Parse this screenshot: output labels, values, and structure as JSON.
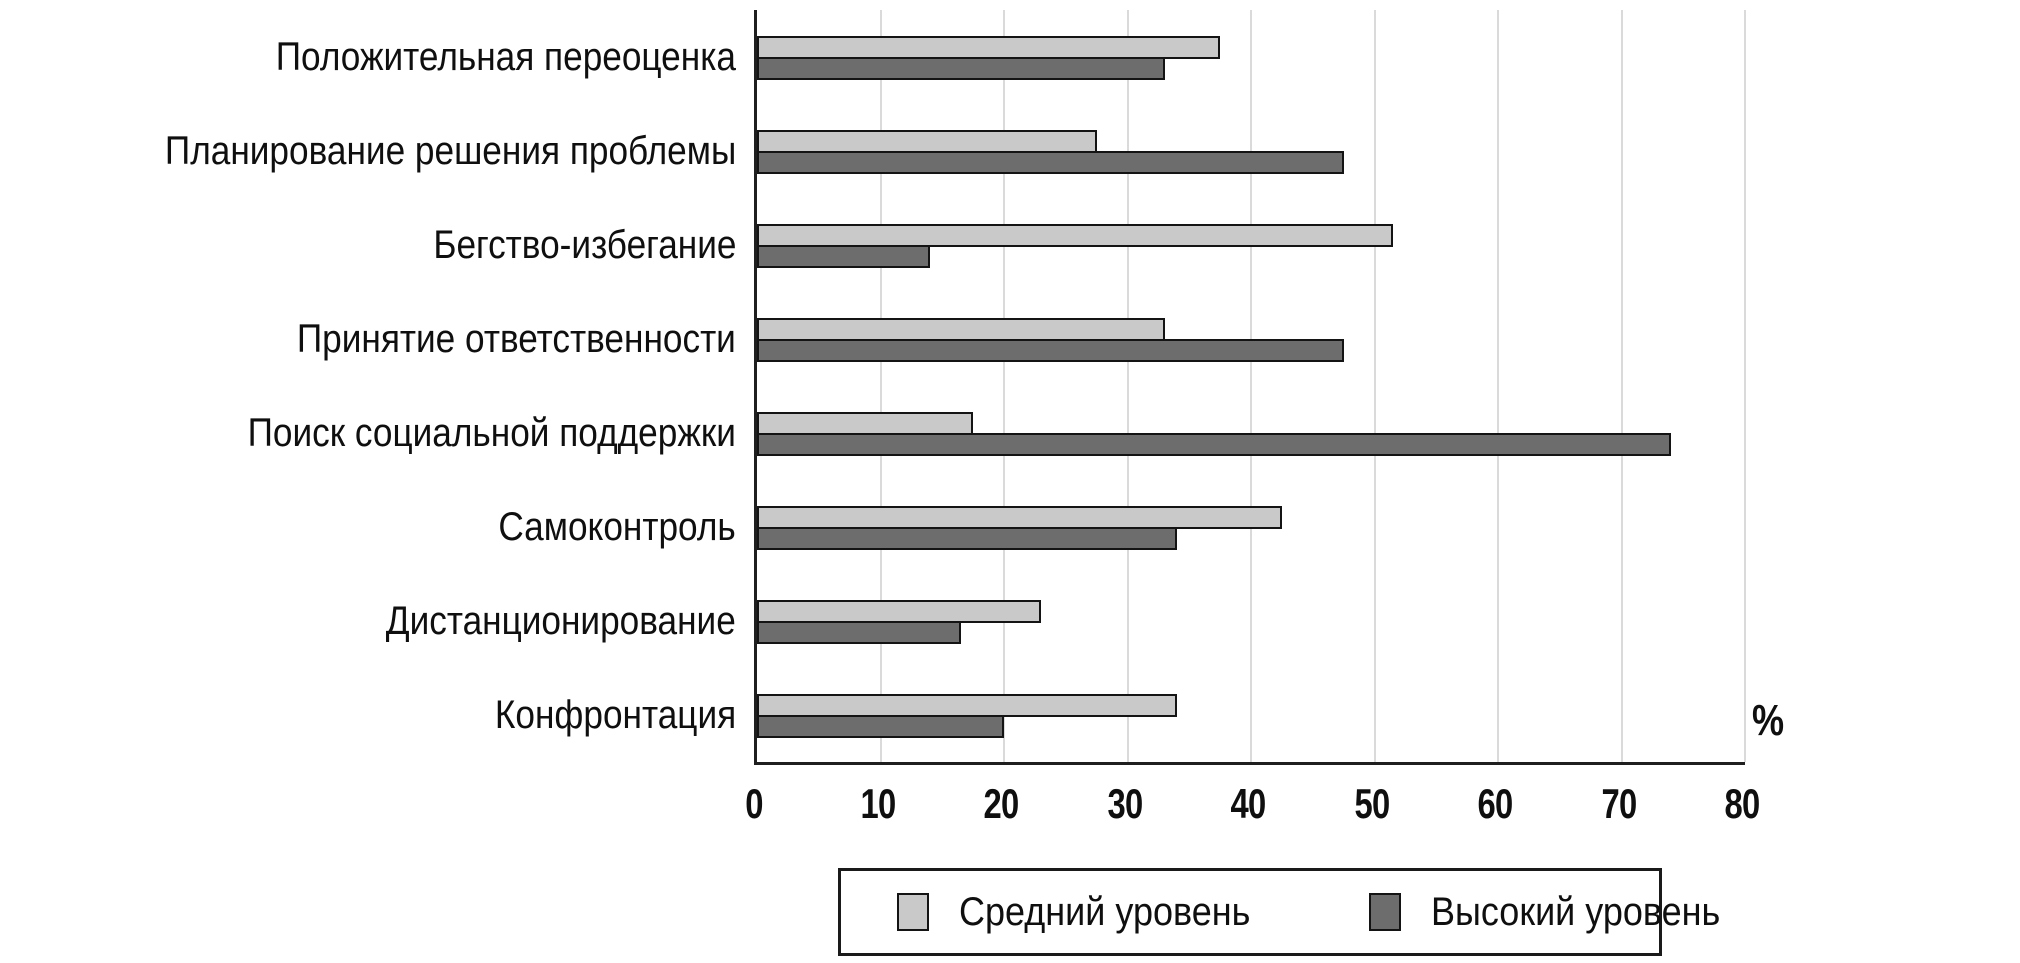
{
  "figure": {
    "percent_label": "%"
  },
  "chart_data": {
    "type": "bar",
    "orientation": "horizontal",
    "title": "",
    "xlabel": "%",
    "ylabel": "",
    "xlim": [
      0,
      80
    ],
    "xticks": [
      0,
      10,
      20,
      30,
      40,
      50,
      60,
      70,
      80
    ],
    "grid": "vertical",
    "legend_position": "bottom",
    "categories": [
      "Положительная переоценка",
      "Планирование решения проблемы",
      "Бегство-избегание",
      "Принятие ответственности",
      "Поиск социальной поддержки",
      "Самоконтроль",
      "Дистанционирование",
      "Конфронтация"
    ],
    "series": [
      {
        "name": "Средний уровень",
        "color": "#c9c9c9",
        "values": [
          37.5,
          27.5,
          51.5,
          33,
          17.5,
          42.5,
          23,
          34
        ]
      },
      {
        "name": "Высокий уровень",
        "color": "#6d6d6d",
        "values": [
          33,
          47.5,
          14,
          47.5,
          74,
          34,
          16.5,
          20
        ]
      }
    ]
  }
}
